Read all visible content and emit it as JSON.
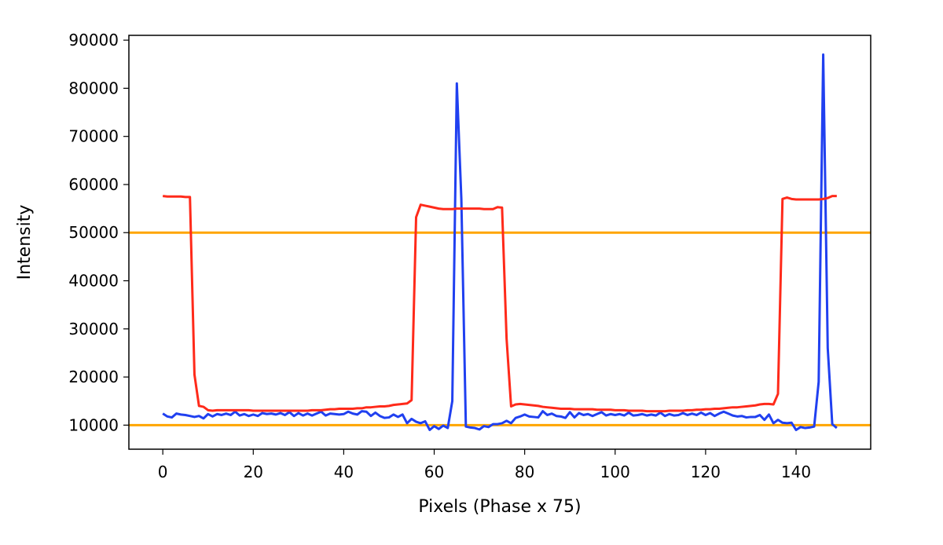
{
  "chart_data": {
    "type": "line",
    "title": "",
    "xlabel": "Pixels (Phase x 75)",
    "ylabel": "Intensity",
    "xlim": [
      -7.5,
      156.5
    ],
    "ylim": [
      5000,
      91000
    ],
    "x_ticks": [
      0,
      20,
      40,
      60,
      80,
      100,
      120,
      140
    ],
    "y_ticks": [
      10000,
      20000,
      30000,
      40000,
      50000,
      60000,
      70000,
      80000,
      90000
    ],
    "grid": false,
    "legend": "none",
    "hlines": [
      {
        "y": 50000,
        "color": "#ffa500"
      },
      {
        "y": 10000,
        "color": "#ffa500"
      }
    ],
    "series": [
      {
        "color": "#2040f0",
        "points": [
          [
            0,
            12400
          ],
          [
            1,
            11800
          ],
          [
            2,
            11600
          ],
          [
            3,
            12400
          ],
          [
            4,
            12200
          ],
          [
            5,
            12100
          ],
          [
            6,
            11900
          ],
          [
            7,
            11700
          ],
          [
            8,
            11900
          ],
          [
            9,
            11400
          ],
          [
            10,
            12300
          ],
          [
            11,
            11800
          ],
          [
            12,
            12300
          ],
          [
            13,
            12100
          ],
          [
            14,
            12400
          ],
          [
            15,
            12100
          ],
          [
            16,
            12800
          ],
          [
            17,
            12000
          ],
          [
            18,
            12300
          ],
          [
            19,
            11900
          ],
          [
            20,
            12200
          ],
          [
            21,
            11900
          ],
          [
            22,
            12500
          ],
          [
            23,
            12300
          ],
          [
            24,
            12400
          ],
          [
            25,
            12200
          ],
          [
            26,
            12500
          ],
          [
            27,
            12100
          ],
          [
            28,
            12700
          ],
          [
            29,
            11900
          ],
          [
            30,
            12500
          ],
          [
            31,
            12000
          ],
          [
            32,
            12400
          ],
          [
            33,
            12000
          ],
          [
            34,
            12400
          ],
          [
            35,
            12800
          ],
          [
            36,
            12000
          ],
          [
            37,
            12400
          ],
          [
            38,
            12300
          ],
          [
            39,
            12200
          ],
          [
            40,
            12300
          ],
          [
            41,
            12800
          ],
          [
            42,
            12400
          ],
          [
            43,
            12200
          ],
          [
            44,
            12900
          ],
          [
            45,
            12800
          ],
          [
            46,
            11900
          ],
          [
            47,
            12600
          ],
          [
            48,
            11900
          ],
          [
            49,
            11500
          ],
          [
            50,
            11600
          ],
          [
            51,
            12200
          ],
          [
            52,
            11700
          ],
          [
            53,
            12200
          ],
          [
            54,
            10400
          ],
          [
            55,
            11300
          ],
          [
            56,
            10700
          ],
          [
            57,
            10400
          ],
          [
            58,
            10800
          ],
          [
            59,
            9000
          ],
          [
            60,
            9800
          ],
          [
            61,
            9200
          ],
          [
            62,
            9900
          ],
          [
            63,
            9400
          ],
          [
            64,
            15000
          ],
          [
            65,
            81000
          ],
          [
            66,
            57000
          ],
          [
            67,
            9700
          ],
          [
            68,
            9500
          ],
          [
            69,
            9400
          ],
          [
            70,
            9100
          ],
          [
            71,
            9800
          ],
          [
            72,
            9600
          ],
          [
            73,
            10200
          ],
          [
            74,
            10200
          ],
          [
            75,
            10400
          ],
          [
            76,
            10900
          ],
          [
            77,
            10400
          ],
          [
            78,
            11500
          ],
          [
            79,
            11800
          ],
          [
            80,
            12200
          ],
          [
            81,
            11800
          ],
          [
            82,
            11700
          ],
          [
            83,
            11600
          ],
          [
            84,
            12900
          ],
          [
            85,
            12100
          ],
          [
            86,
            12400
          ],
          [
            87,
            11900
          ],
          [
            88,
            11800
          ],
          [
            89,
            11500
          ],
          [
            90,
            12700
          ],
          [
            91,
            11600
          ],
          [
            92,
            12500
          ],
          [
            93,
            12100
          ],
          [
            94,
            12300
          ],
          [
            95,
            11900
          ],
          [
            96,
            12300
          ],
          [
            97,
            12700
          ],
          [
            98,
            12000
          ],
          [
            99,
            12300
          ],
          [
            100,
            12100
          ],
          [
            101,
            12300
          ],
          [
            102,
            12000
          ],
          [
            103,
            12600
          ],
          [
            104,
            12000
          ],
          [
            105,
            12100
          ],
          [
            106,
            12300
          ],
          [
            107,
            12000
          ],
          [
            108,
            12200
          ],
          [
            109,
            12000
          ],
          [
            110,
            12600
          ],
          [
            111,
            11900
          ],
          [
            112,
            12300
          ],
          [
            113,
            12000
          ],
          [
            114,
            12100
          ],
          [
            115,
            12500
          ],
          [
            116,
            12100
          ],
          [
            117,
            12400
          ],
          [
            118,
            12100
          ],
          [
            119,
            12600
          ],
          [
            120,
            12100
          ],
          [
            121,
            12500
          ],
          [
            122,
            11900
          ],
          [
            123,
            12400
          ],
          [
            124,
            12800
          ],
          [
            125,
            12400
          ],
          [
            126,
            12000
          ],
          [
            127,
            11800
          ],
          [
            128,
            11900
          ],
          [
            129,
            11600
          ],
          [
            130,
            11700
          ],
          [
            131,
            11700
          ],
          [
            132,
            12100
          ],
          [
            133,
            11100
          ],
          [
            134,
            12200
          ],
          [
            135,
            10400
          ],
          [
            136,
            11100
          ],
          [
            137,
            10500
          ],
          [
            138,
            10400
          ],
          [
            139,
            10500
          ],
          [
            140,
            9000
          ],
          [
            141,
            9600
          ],
          [
            142,
            9400
          ],
          [
            143,
            9500
          ],
          [
            144,
            9700
          ],
          [
            145,
            19000
          ],
          [
            146,
            87000
          ],
          [
            147,
            26000
          ],
          [
            148,
            10200
          ],
          [
            149,
            9400
          ]
        ]
      },
      {
        "color": "#ff2a1a",
        "points": [
          [
            0,
            57600
          ],
          [
            1,
            57500
          ],
          [
            2,
            57500
          ],
          [
            3,
            57500
          ],
          [
            4,
            57500
          ],
          [
            5,
            57400
          ],
          [
            6,
            57400
          ],
          [
            7,
            20500
          ],
          [
            8,
            14000
          ],
          [
            9,
            13800
          ],
          [
            10,
            13100
          ],
          [
            11,
            13000
          ],
          [
            12,
            13100
          ],
          [
            13,
            13100
          ],
          [
            14,
            13100
          ],
          [
            15,
            13100
          ],
          [
            16,
            13100
          ],
          [
            17,
            13100
          ],
          [
            18,
            13100
          ],
          [
            19,
            13100
          ],
          [
            20,
            13000
          ],
          [
            21,
            13000
          ],
          [
            22,
            13000
          ],
          [
            23,
            13000
          ],
          [
            24,
            13000
          ],
          [
            25,
            13000
          ],
          [
            26,
            13000
          ],
          [
            27,
            13000
          ],
          [
            28,
            13000
          ],
          [
            29,
            13000
          ],
          [
            30,
            13000
          ],
          [
            31,
            13000
          ],
          [
            32,
            13000
          ],
          [
            33,
            13100
          ],
          [
            34,
            13100
          ],
          [
            35,
            13100
          ],
          [
            36,
            13200
          ],
          [
            37,
            13300
          ],
          [
            38,
            13300
          ],
          [
            39,
            13400
          ],
          [
            40,
            13400
          ],
          [
            41,
            13400
          ],
          [
            42,
            13400
          ],
          [
            43,
            13500
          ],
          [
            44,
            13500
          ],
          [
            45,
            13700
          ],
          [
            46,
            13700
          ],
          [
            47,
            13800
          ],
          [
            48,
            13900
          ],
          [
            49,
            13900
          ],
          [
            50,
            14000
          ],
          [
            51,
            14200
          ],
          [
            52,
            14300
          ],
          [
            53,
            14400
          ],
          [
            54,
            14500
          ],
          [
            55,
            15200
          ],
          [
            56,
            53200
          ],
          [
            57,
            55800
          ],
          [
            58,
            55600
          ],
          [
            59,
            55400
          ],
          [
            60,
            55200
          ],
          [
            61,
            55000
          ],
          [
            62,
            54900
          ],
          [
            63,
            54900
          ],
          [
            64,
            54900
          ],
          [
            65,
            55000
          ],
          [
            66,
            55000
          ],
          [
            67,
            55000
          ],
          [
            68,
            55000
          ],
          [
            69,
            55000
          ],
          [
            70,
            55000
          ],
          [
            71,
            54900
          ],
          [
            72,
            54900
          ],
          [
            73,
            54900
          ],
          [
            74,
            55300
          ],
          [
            75,
            55200
          ],
          [
            76,
            28000
          ],
          [
            77,
            13900
          ],
          [
            78,
            14300
          ],
          [
            79,
            14400
          ],
          [
            80,
            14300
          ],
          [
            81,
            14200
          ],
          [
            82,
            14100
          ],
          [
            83,
            14000
          ],
          [
            84,
            13800
          ],
          [
            85,
            13700
          ],
          [
            86,
            13600
          ],
          [
            87,
            13500
          ],
          [
            88,
            13400
          ],
          [
            89,
            13400
          ],
          [
            90,
            13400
          ],
          [
            91,
            13300
          ],
          [
            92,
            13300
          ],
          [
            93,
            13300
          ],
          [
            94,
            13300
          ],
          [
            95,
            13300
          ],
          [
            96,
            13200
          ],
          [
            97,
            13200
          ],
          [
            98,
            13200
          ],
          [
            99,
            13200
          ],
          [
            100,
            13100
          ],
          [
            101,
            13100
          ],
          [
            102,
            13100
          ],
          [
            103,
            13000
          ],
          [
            104,
            13000
          ],
          [
            105,
            13000
          ],
          [
            106,
            13000
          ],
          [
            107,
            12900
          ],
          [
            108,
            12900
          ],
          [
            109,
            12900
          ],
          [
            110,
            12900
          ],
          [
            111,
            12900
          ],
          [
            112,
            13000
          ],
          [
            113,
            13000
          ],
          [
            114,
            13000
          ],
          [
            115,
            13000
          ],
          [
            116,
            13100
          ],
          [
            117,
            13100
          ],
          [
            118,
            13200
          ],
          [
            119,
            13200
          ],
          [
            120,
            13300
          ],
          [
            121,
            13300
          ],
          [
            122,
            13400
          ],
          [
            123,
            13400
          ],
          [
            124,
            13500
          ],
          [
            125,
            13600
          ],
          [
            126,
            13700
          ],
          [
            127,
            13700
          ],
          [
            128,
            13800
          ],
          [
            129,
            13900
          ],
          [
            130,
            14000
          ],
          [
            131,
            14100
          ],
          [
            132,
            14300
          ],
          [
            133,
            14400
          ],
          [
            134,
            14400
          ],
          [
            135,
            14300
          ],
          [
            136,
            16500
          ],
          [
            137,
            57000
          ],
          [
            138,
            57300
          ],
          [
            139,
            57000
          ],
          [
            140,
            56900
          ],
          [
            141,
            56900
          ],
          [
            142,
            56900
          ],
          [
            143,
            56900
          ],
          [
            144,
            56900
          ],
          [
            145,
            56900
          ],
          [
            146,
            57000
          ],
          [
            147,
            57200
          ],
          [
            148,
            57600
          ],
          [
            149,
            57600
          ]
        ]
      }
    ]
  }
}
